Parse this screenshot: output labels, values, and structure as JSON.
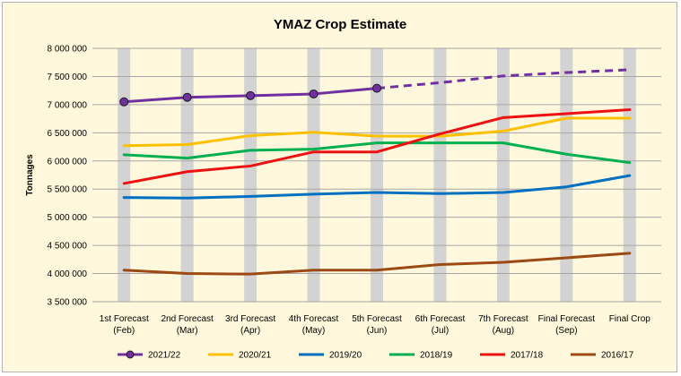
{
  "chart_data": {
    "type": "line",
    "title": "YMAZ Crop Estimate",
    "ylabel": "Tonnages",
    "xlabel": "",
    "ylim": [
      3500000,
      8000000
    ],
    "ytick_step": 500000,
    "grid": "horizontal",
    "legend_position": "bottom",
    "categories": [
      [
        "1st Forecast",
        "(Feb)"
      ],
      [
        "2nd Forecast",
        "(Mar)"
      ],
      [
        "3rd Forecast",
        "(Apr)"
      ],
      [
        "4th Forecast",
        "(May)"
      ],
      [
        "5th Forecast",
        "(Jun)"
      ],
      [
        "6th Forecast",
        "(Jul)"
      ],
      [
        "7th Forecast",
        "(Aug)"
      ],
      [
        "Final Forecast",
        "(Sep)"
      ],
      [
        "Final Crop",
        ""
      ]
    ],
    "series": [
      {
        "name": "2021/22",
        "color": "#7030a0",
        "markers": true,
        "values": [
          7050000,
          7130000,
          7160000,
          7190000,
          7290000,
          null,
          null,
          null,
          null
        ],
        "projection": [
          7290000,
          7390000,
          7510000,
          7570000,
          7620000
        ],
        "projection_start_index": 4
      },
      {
        "name": "2020/21",
        "color": "#ffc000",
        "values": [
          6270000,
          6290000,
          6450000,
          6510000,
          6440000,
          6440000,
          6530000,
          6760000,
          6760000
        ]
      },
      {
        "name": "2019/20",
        "color": "#0070c0",
        "values": [
          5350000,
          5340000,
          5370000,
          5410000,
          5440000,
          5420000,
          5440000,
          5540000,
          5740000
        ]
      },
      {
        "name": "2018/19",
        "color": "#00b050",
        "values": [
          6110000,
          6050000,
          6190000,
          6210000,
          6320000,
          6320000,
          6320000,
          6120000,
          5970000
        ]
      },
      {
        "name": "2017/18",
        "color": "#ee1111",
        "values": [
          5600000,
          5810000,
          5910000,
          6160000,
          6160000,
          6480000,
          6770000,
          6840000,
          6910000
        ]
      },
      {
        "name": "2016/17",
        "color": "#9c4a14",
        "values": [
          4060000,
          4000000,
          3990000,
          4060000,
          4060000,
          4160000,
          4200000,
          4280000,
          4360000
        ]
      }
    ]
  }
}
